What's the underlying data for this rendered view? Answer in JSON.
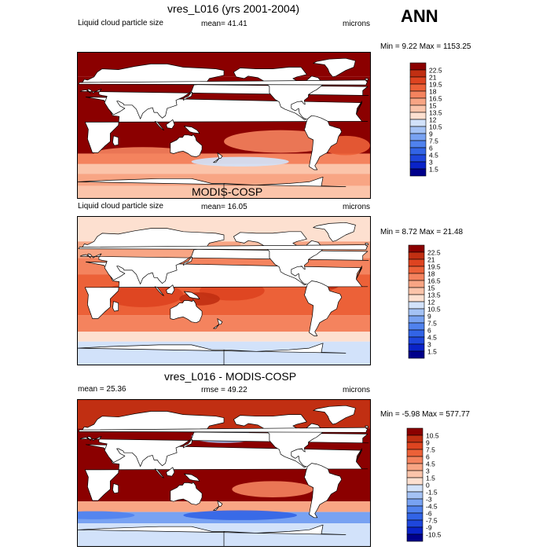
{
  "season": "ANN",
  "units": "microns",
  "colors": {
    "ref": [
      "#00008b",
      "#0a23c8",
      "#1e46dc",
      "#3264e6",
      "#5082ee",
      "#78a2f2",
      "#a4c2f5",
      "#d2e2fa",
      "#ffffff",
      "#fde0d0",
      "#fbc4aa",
      "#f8a584",
      "#f4835e",
      "#ec6138",
      "#de4420",
      "#c12f12",
      "#8b0000"
    ],
    "diff": [
      "#00008b",
      "#0a23c8",
      "#1e46dc",
      "#3264e6",
      "#5082ee",
      "#78a2f2",
      "#a4c2f5",
      "#d2e2fa",
      "#ffffff",
      "#fde0d0",
      "#fbc4aa",
      "#f8a584",
      "#f4835e",
      "#ec6138",
      "#de4420",
      "#c12f12",
      "#8b0000"
    ],
    "land": "#ffffff",
    "coast": "#000000"
  },
  "panels": [
    {
      "title": "vres_L016 (yrs 2001-2004)",
      "left_label": "Liquid cloud particle size",
      "center_label": "mean=  41.41",
      "right_label": "microns",
      "minmax": "Min =   9.22 Max = 1153.25",
      "colorbar_ticks": [
        "22.5",
        "21",
        "19.5",
        "18",
        "16.5",
        "15",
        "13.5",
        "12",
        "10.5",
        "9",
        "7.5",
        "6",
        "4.5",
        "3",
        "1.5"
      ]
    },
    {
      "title": "MODIS-COSP",
      "left_label": "Liquid cloud particle size",
      "center_label": "mean=  16.05",
      "right_label": "microns",
      "minmax": "Min =   8.72 Max =  21.48",
      "colorbar_ticks": [
        "22.5",
        "21",
        "19.5",
        "18",
        "16.5",
        "15",
        "13.5",
        "12",
        "10.5",
        "9",
        "7.5",
        "6",
        "4.5",
        "3",
        "1.5"
      ]
    },
    {
      "title": "vres_L016 - MODIS-COSP",
      "left_label": "mean =  25.36",
      "center_label": "rmse =  49.22",
      "right_label": "microns",
      "minmax": "Min =  -5.98 Max = 577.77",
      "colorbar_ticks": [
        "10.5",
        "9",
        "7.5",
        "6",
        "4.5",
        "3",
        "1.5",
        "0",
        "-1.5",
        "-3",
        "-4.5",
        "-6",
        "-7.5",
        "-9",
        "-10.5"
      ]
    }
  ],
  "chart_data": [
    {
      "type": "heatmap",
      "title": "vres_L016 (yrs 2001-2004)",
      "variable": "Liquid cloud particle size",
      "units": "microns",
      "mean": 41.41,
      "min": 9.22,
      "max": 1153.25,
      "contour_levels": [
        1.5,
        3,
        4.5,
        6,
        7.5,
        9,
        10.5,
        12,
        13.5,
        15,
        16.5,
        18,
        19.5,
        21,
        22.5
      ],
      "lon_range": [
        0,
        360
      ],
      "lat_range": [
        -90,
        90
      ]
    },
    {
      "type": "heatmap",
      "title": "MODIS-COSP",
      "variable": "Liquid cloud particle size",
      "units": "microns",
      "mean": 16.05,
      "min": 8.72,
      "max": 21.48,
      "contour_levels": [
        1.5,
        3,
        4.5,
        6,
        7.5,
        9,
        10.5,
        12,
        13.5,
        15,
        16.5,
        18,
        19.5,
        21,
        22.5
      ],
      "lon_range": [
        0,
        360
      ],
      "lat_range": [
        -90,
        90
      ]
    },
    {
      "type": "heatmap",
      "title": "vres_L016 - MODIS-COSP",
      "units": "microns",
      "mean": 25.36,
      "rmse": 49.22,
      "min": -5.98,
      "max": 577.77,
      "contour_levels": [
        -10.5,
        -9,
        -7.5,
        -6,
        -4.5,
        -3,
        -1.5,
        0,
        1.5,
        3,
        4.5,
        6,
        7.5,
        9,
        10.5
      ],
      "lon_range": [
        0,
        360
      ],
      "lat_range": [
        -90,
        90
      ]
    }
  ]
}
